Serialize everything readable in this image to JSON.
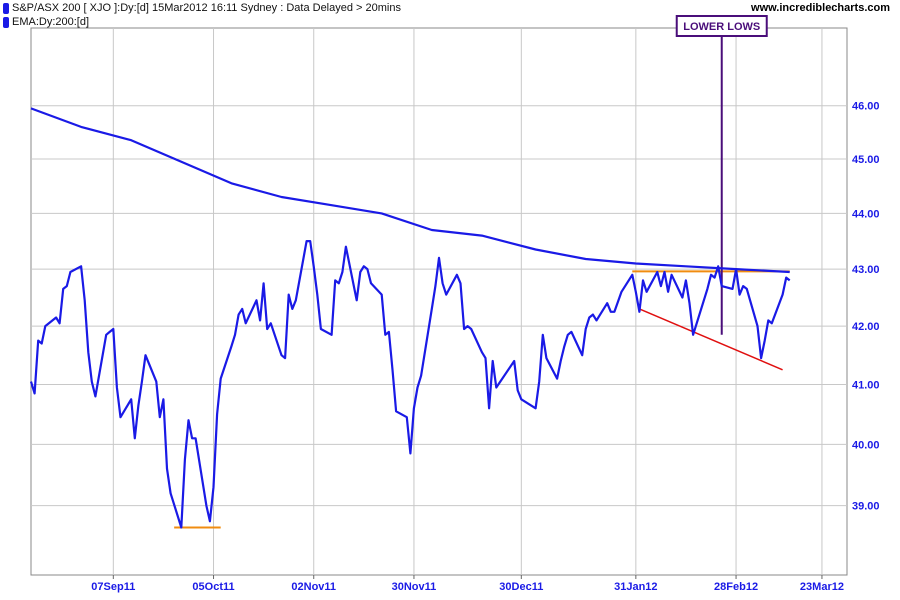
{
  "header": {
    "legend": [
      {
        "label": "S&P/ASX 200 [ XJO ]:Dy:[d]  15Mar2012 16:11 Sydney : Data Delayed > 20mins",
        "color": "#1a1ae6"
      },
      {
        "label": "EMA:Dy:200:[d]",
        "color": "#1a1ae6"
      }
    ],
    "site": "www.incrediblecharts.com"
  },
  "chart_data": {
    "type": "line",
    "title": "",
    "xlabel": "",
    "ylabel": "",
    "x_ticks": [
      "07Sep11",
      "05Oct11",
      "02Nov11",
      "30Nov11",
      "30Dec11",
      "31Jan12",
      "28Feb12",
      "23Mar12"
    ],
    "x_tick_dates": [
      "2011-09-07",
      "2011-10-05",
      "2011-11-02",
      "2011-11-30",
      "2011-12-30",
      "2012-01-31",
      "2012-02-28",
      "2012-03-23"
    ],
    "xlim": [
      "2011-08-15",
      "2012-03-30"
    ],
    "y_ticks": [
      "39.00",
      "40.00",
      "41.00",
      "42.00",
      "43.00",
      "44.00",
      "45.00",
      "46.00"
    ],
    "y_scale": "log",
    "ylim": [
      37.9,
      47.5
    ],
    "grid": true,
    "series": [
      {
        "name": "S&P/ASX 200 [ XJO ]:Dy:[d]",
        "color": "#1a1ae6",
        "points": [
          [
            "2011-08-15",
            41.05
          ],
          [
            "2011-08-16",
            40.85
          ],
          [
            "2011-08-17",
            41.75
          ],
          [
            "2011-08-18",
            41.7
          ],
          [
            "2011-08-19",
            42.0
          ],
          [
            "2011-08-22",
            42.15
          ],
          [
            "2011-08-23",
            42.05
          ],
          [
            "2011-08-24",
            42.65
          ],
          [
            "2011-08-25",
            42.7
          ],
          [
            "2011-08-26",
            42.95
          ],
          [
            "2011-08-29",
            43.05
          ],
          [
            "2011-08-30",
            42.45
          ],
          [
            "2011-08-31",
            41.55
          ],
          [
            "2011-09-01",
            41.05
          ],
          [
            "2011-09-02",
            40.8
          ],
          [
            "2011-09-05",
            41.85
          ],
          [
            "2011-09-06",
            41.9
          ],
          [
            "2011-09-07",
            41.95
          ],
          [
            "2011-09-08",
            40.95
          ],
          [
            "2011-09-09",
            40.45
          ],
          [
            "2011-09-12",
            40.75
          ],
          [
            "2011-09-13",
            40.1
          ],
          [
            "2011-09-14",
            40.65
          ],
          [
            "2011-09-15",
            41.05
          ],
          [
            "2011-09-16",
            41.5
          ],
          [
            "2011-09-19",
            41.05
          ],
          [
            "2011-09-20",
            40.45
          ],
          [
            "2011-09-21",
            40.75
          ],
          [
            "2011-09-22",
            39.6
          ],
          [
            "2011-09-23",
            39.2
          ],
          [
            "2011-09-26",
            38.65
          ],
          [
            "2011-09-27",
            39.75
          ],
          [
            "2011-09-28",
            40.4
          ],
          [
            "2011-09-29",
            40.1
          ],
          [
            "2011-09-30",
            40.1
          ],
          [
            "2011-10-03",
            39.0
          ],
          [
            "2011-10-04",
            38.75
          ],
          [
            "2011-10-05",
            39.3
          ],
          [
            "2011-10-06",
            40.5
          ],
          [
            "2011-10-07",
            41.1
          ],
          [
            "2011-10-10",
            41.65
          ],
          [
            "2011-10-11",
            41.85
          ],
          [
            "2011-10-12",
            42.2
          ],
          [
            "2011-10-13",
            42.3
          ],
          [
            "2011-10-14",
            42.05
          ],
          [
            "2011-10-17",
            42.45
          ],
          [
            "2011-10-18",
            42.1
          ],
          [
            "2011-10-19",
            42.75
          ],
          [
            "2011-10-20",
            41.95
          ],
          [
            "2011-10-21",
            42.05
          ],
          [
            "2011-10-24",
            41.5
          ],
          [
            "2011-10-25",
            41.45
          ],
          [
            "2011-10-26",
            42.55
          ],
          [
            "2011-10-27",
            42.3
          ],
          [
            "2011-10-28",
            42.45
          ],
          [
            "2011-10-31",
            43.5
          ],
          [
            "2011-11-01",
            43.5
          ],
          [
            "2011-11-02",
            43.05
          ],
          [
            "2011-11-03",
            42.55
          ],
          [
            "2011-11-04",
            41.95
          ],
          [
            "2011-11-07",
            41.85
          ],
          [
            "2011-11-08",
            42.8
          ],
          [
            "2011-11-09",
            42.75
          ],
          [
            "2011-11-10",
            42.95
          ],
          [
            "2011-11-11",
            43.4
          ],
          [
            "2011-11-14",
            42.45
          ],
          [
            "2011-11-15",
            42.95
          ],
          [
            "2011-11-16",
            43.05
          ],
          [
            "2011-11-17",
            43.0
          ],
          [
            "2011-11-18",
            42.75
          ],
          [
            "2011-11-21",
            42.55
          ],
          [
            "2011-11-22",
            41.85
          ],
          [
            "2011-11-23",
            41.9
          ],
          [
            "2011-11-24",
            41.25
          ],
          [
            "2011-11-25",
            40.55
          ],
          [
            "2011-11-28",
            40.45
          ],
          [
            "2011-11-29",
            39.85
          ],
          [
            "2011-11-30",
            40.6
          ],
          [
            "2011-12-01",
            40.95
          ],
          [
            "2011-12-02",
            41.15
          ],
          [
            "2011-12-05",
            42.3
          ],
          [
            "2011-12-06",
            42.7
          ],
          [
            "2011-12-07",
            43.2
          ],
          [
            "2011-12-08",
            42.75
          ],
          [
            "2011-12-09",
            42.55
          ],
          [
            "2011-12-12",
            42.9
          ],
          [
            "2011-12-13",
            42.75
          ],
          [
            "2011-12-14",
            41.95
          ],
          [
            "2011-12-15",
            42.0
          ],
          [
            "2011-12-16",
            41.95
          ],
          [
            "2011-12-19",
            41.55
          ],
          [
            "2011-12-20",
            41.45
          ],
          [
            "2011-12-21",
            40.6
          ],
          [
            "2011-12-22",
            41.4
          ],
          [
            "2011-12-23",
            40.95
          ],
          [
            "2011-12-28",
            41.4
          ],
          [
            "2011-12-29",
            40.9
          ],
          [
            "2011-12-30",
            40.75
          ],
          [
            "2012-01-03",
            40.6
          ],
          [
            "2012-01-04",
            41.05
          ],
          [
            "2012-01-05",
            41.85
          ],
          [
            "2012-01-06",
            41.45
          ],
          [
            "2012-01-09",
            41.1
          ],
          [
            "2012-01-10",
            41.4
          ],
          [
            "2012-01-11",
            41.65
          ],
          [
            "2012-01-12",
            41.85
          ],
          [
            "2012-01-13",
            41.9
          ],
          [
            "2012-01-16",
            41.5
          ],
          [
            "2012-01-17",
            41.95
          ],
          [
            "2012-01-18",
            42.15
          ],
          [
            "2012-01-19",
            42.2
          ],
          [
            "2012-01-20",
            42.1
          ],
          [
            "2012-01-23",
            42.4
          ],
          [
            "2012-01-24",
            42.25
          ],
          [
            "2012-01-25",
            42.25
          ],
          [
            "2012-01-27",
            42.6
          ],
          [
            "2012-01-30",
            42.9
          ],
          [
            "2012-01-31",
            42.6
          ],
          [
            "2012-02-01",
            42.25
          ],
          [
            "2012-02-02",
            42.8
          ],
          [
            "2012-02-03",
            42.6
          ],
          [
            "2012-02-06",
            42.95
          ],
          [
            "2012-02-07",
            42.7
          ],
          [
            "2012-02-08",
            42.95
          ],
          [
            "2012-02-09",
            42.6
          ],
          [
            "2012-02-10",
            42.9
          ],
          [
            "2012-02-13",
            42.5
          ],
          [
            "2012-02-14",
            42.8
          ],
          [
            "2012-02-15",
            42.4
          ],
          [
            "2012-02-16",
            41.85
          ],
          [
            "2012-02-17",
            42.05
          ],
          [
            "2012-02-20",
            42.65
          ],
          [
            "2012-02-21",
            42.9
          ],
          [
            "2012-02-22",
            42.85
          ],
          [
            "2012-02-23",
            43.05
          ],
          [
            "2012-02-24",
            42.7
          ],
          [
            "2012-02-27",
            42.65
          ],
          [
            "2012-02-28",
            43.0
          ],
          [
            "2012-02-29",
            42.55
          ],
          [
            "2012-03-01",
            42.7
          ],
          [
            "2012-03-02",
            42.65
          ],
          [
            "2012-03-05",
            42.0
          ],
          [
            "2012-03-06",
            41.45
          ],
          [
            "2012-03-07",
            41.75
          ],
          [
            "2012-03-08",
            42.1
          ],
          [
            "2012-03-09",
            42.05
          ],
          [
            "2012-03-12",
            42.55
          ],
          [
            "2012-03-13",
            42.85
          ],
          [
            "2012-03-14",
            42.8
          ]
        ]
      },
      {
        "name": "EMA:Dy:200:[d]",
        "color": "#1a1ae6",
        "points": [
          [
            "2011-08-15",
            45.95
          ],
          [
            "2011-08-29",
            45.6
          ],
          [
            "2011-09-12",
            45.35
          ],
          [
            "2011-09-26",
            44.95
          ],
          [
            "2011-10-10",
            44.55
          ],
          [
            "2011-10-24",
            44.3
          ],
          [
            "2011-11-07",
            44.15
          ],
          [
            "2011-11-21",
            44.0
          ],
          [
            "2011-12-05",
            43.7
          ],
          [
            "2011-12-19",
            43.6
          ],
          [
            "2012-01-03",
            43.35
          ],
          [
            "2012-01-17",
            43.18
          ],
          [
            "2012-01-31",
            43.1
          ],
          [
            "2012-02-14",
            43.05
          ],
          [
            "2012-02-28",
            43.0
          ],
          [
            "2012-03-14",
            42.95
          ]
        ]
      }
    ],
    "annotations": [
      {
        "type": "hline",
        "label": "",
        "color": "#f08c10",
        "y": 38.65,
        "x1": "2011-09-24",
        "x2": "2011-10-07"
      },
      {
        "type": "hline",
        "label": "",
        "color": "#f08c10",
        "y": 42.96,
        "x1": "2012-01-30",
        "x2": "2012-03-14"
      },
      {
        "type": "trendline",
        "label": "",
        "color": "#e01010",
        "points": [
          [
            "2012-02-01",
            42.3
          ],
          [
            "2012-03-12",
            41.25
          ]
        ]
      },
      {
        "type": "vline",
        "label": "LOWER LOWS",
        "color": "#4a0e7a",
        "x": "2012-02-24",
        "y_bottom": 41.85
      }
    ]
  }
}
